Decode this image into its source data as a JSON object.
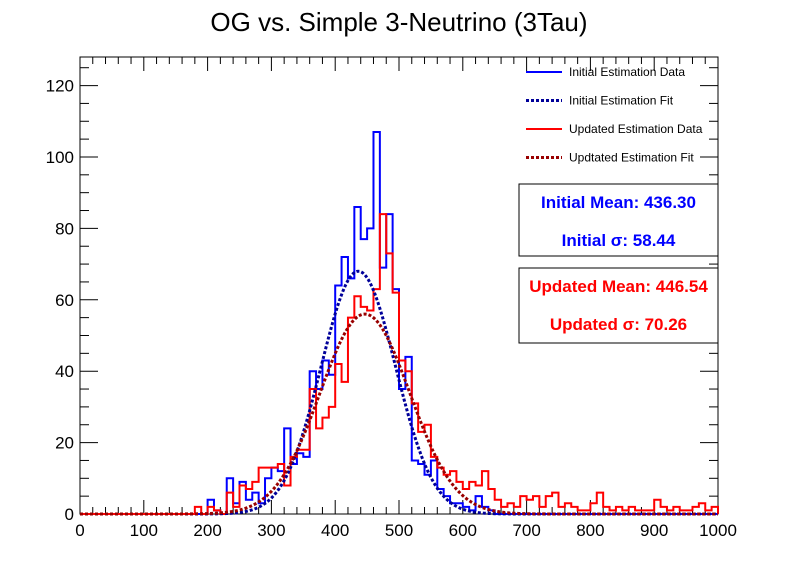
{
  "chart_data": {
    "type": "histogram",
    "title": "OG vs. Simple 3-Neutrino (3Tau)",
    "xlabel": "",
    "ylabel": "",
    "xlim": [
      0,
      1000
    ],
    "ylim": [
      0,
      128
    ],
    "bin_width": 10,
    "x_ticks": [
      0,
      100,
      200,
      300,
      400,
      500,
      600,
      700,
      800,
      900,
      1000
    ],
    "y_ticks": [
      0,
      20,
      40,
      60,
      80,
      100,
      120
    ],
    "legend_position": "top-right",
    "series": [
      {
        "name": "Initial Estimation Data",
        "style": "step",
        "color": "#0000ff",
        "bins": [
          [
            200,
            4
          ],
          [
            210,
            1
          ],
          [
            220,
            0
          ],
          [
            230,
            10
          ],
          [
            240,
            3
          ],
          [
            250,
            9
          ],
          [
            260,
            4
          ],
          [
            270,
            6
          ],
          [
            280,
            3
          ],
          [
            290,
            10
          ],
          [
            300,
            13
          ],
          [
            310,
            12
          ],
          [
            320,
            24
          ],
          [
            330,
            14
          ],
          [
            340,
            17
          ],
          [
            350,
            16
          ],
          [
            360,
            40
          ],
          [
            370,
            35
          ],
          [
            380,
            43
          ],
          [
            390,
            39
          ],
          [
            400,
            64
          ],
          [
            410,
            72
          ],
          [
            420,
            66
          ],
          [
            430,
            86
          ],
          [
            440,
            77
          ],
          [
            450,
            80
          ],
          [
            460,
            107
          ],
          [
            470,
            69
          ],
          [
            480,
            84
          ],
          [
            490,
            63
          ],
          [
            500,
            35
          ],
          [
            510,
            44
          ],
          [
            520,
            15
          ],
          [
            530,
            14
          ],
          [
            540,
            11
          ],
          [
            550,
            15
          ],
          [
            560,
            7
          ],
          [
            570,
            5
          ],
          [
            580,
            3
          ],
          [
            590,
            3
          ],
          [
            600,
            2
          ],
          [
            610,
            1
          ],
          [
            620,
            5
          ],
          [
            630,
            2
          ],
          [
            640,
            1
          ]
        ]
      },
      {
        "name": "Initial Estimation Fit",
        "style": "dotted",
        "color": "#000099",
        "mean": 436.3,
        "sigma": 58.44,
        "amplitude": 68
      },
      {
        "name": "Updated Estimation Data",
        "style": "step",
        "color": "#ff0000",
        "bins": [
          [
            180,
            2
          ],
          [
            190,
            0
          ],
          [
            200,
            2
          ],
          [
            210,
            1
          ],
          [
            220,
            0
          ],
          [
            230,
            6
          ],
          [
            240,
            2
          ],
          [
            250,
            8
          ],
          [
            260,
            7
          ],
          [
            270,
            9
          ],
          [
            280,
            13
          ],
          [
            290,
            13
          ],
          [
            300,
            13
          ],
          [
            310,
            14
          ],
          [
            320,
            8
          ],
          [
            330,
            16
          ],
          [
            340,
            18
          ],
          [
            350,
            18
          ],
          [
            360,
            35
          ],
          [
            370,
            24
          ],
          [
            380,
            27
          ],
          [
            390,
            30
          ],
          [
            400,
            42
          ],
          [
            410,
            37
          ],
          [
            420,
            55
          ],
          [
            430,
            61
          ],
          [
            440,
            58
          ],
          [
            450,
            57
          ],
          [
            460,
            63
          ],
          [
            470,
            84
          ],
          [
            480,
            73
          ],
          [
            490,
            62
          ],
          [
            500,
            43
          ],
          [
            510,
            40
          ],
          [
            520,
            31
          ],
          [
            530,
            23
          ],
          [
            540,
            25
          ],
          [
            550,
            16
          ],
          [
            560,
            13
          ],
          [
            570,
            11
          ],
          [
            580,
            12
          ],
          [
            590,
            9
          ],
          [
            600,
            7
          ],
          [
            610,
            9
          ],
          [
            620,
            8
          ],
          [
            630,
            12
          ],
          [
            640,
            7
          ],
          [
            650,
            4
          ],
          [
            660,
            2
          ],
          [
            670,
            3
          ],
          [
            680,
            2
          ],
          [
            690,
            5
          ],
          [
            700,
            4
          ],
          [
            710,
            5
          ],
          [
            720,
            2
          ],
          [
            730,
            5
          ],
          [
            740,
            6
          ],
          [
            750,
            2
          ],
          [
            760,
            3
          ],
          [
            770,
            2
          ],
          [
            780,
            1
          ],
          [
            790,
            1
          ],
          [
            800,
            3
          ],
          [
            810,
            6
          ],
          [
            820,
            2
          ],
          [
            830,
            1
          ],
          [
            840,
            2
          ],
          [
            850,
            1
          ],
          [
            860,
            2
          ],
          [
            870,
            1
          ],
          [
            880,
            1
          ],
          [
            890,
            1
          ],
          [
            900,
            4
          ],
          [
            910,
            2
          ],
          [
            920,
            1
          ],
          [
            930,
            2
          ],
          [
            940,
            1
          ],
          [
            950,
            1
          ],
          [
            960,
            2
          ],
          [
            970,
            3
          ],
          [
            980,
            1
          ],
          [
            990,
            2
          ]
        ]
      },
      {
        "name": "Updtated Estimation Fit",
        "style": "dotted",
        "color": "#990000",
        "mean": 446.54,
        "sigma": 70.26,
        "amplitude": 56
      }
    ],
    "stat_boxes": [
      {
        "line1": "Initial Mean: 436.30",
        "line2": "Initial σ: 58.44",
        "color": "#0000ff"
      },
      {
        "line1": "Updated Mean: 446.54",
        "line2": "Updated σ: 70.26",
        "color": "#ff0000"
      }
    ]
  }
}
